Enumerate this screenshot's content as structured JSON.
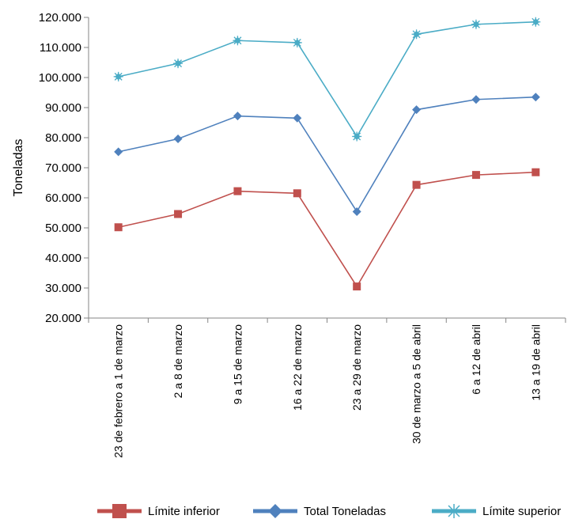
{
  "chart_data": {
    "type": "line",
    "ylabel": "Toneladas",
    "ylim": [
      20000,
      120000
    ],
    "y_ticks": [
      {
        "value": 20000,
        "label": "20.000"
      },
      {
        "value": 30000,
        "label": "30.000"
      },
      {
        "value": 40000,
        "label": "40.000"
      },
      {
        "value": 50000,
        "label": "50.000"
      },
      {
        "value": 60000,
        "label": "60.000"
      },
      {
        "value": 70000,
        "label": "70.000"
      },
      {
        "value": 80000,
        "label": "80.000"
      },
      {
        "value": 90000,
        "label": "90.000"
      },
      {
        "value": 100000,
        "label": "100.000"
      },
      {
        "value": 110000,
        "label": "110.000"
      },
      {
        "value": 120000,
        "label": "120.000"
      }
    ],
    "categories": [
      "23 de febrero a 1 de marzo",
      "2 a 8 de marzo",
      "9 a 15 de marzo",
      "16 a 22 de marzo",
      "23 a 29 de marzo",
      "30 de marzo a 5 de  abril",
      "6 a 12 de  abril",
      "13 a 19 de  abril"
    ],
    "series": [
      {
        "name": "Límite inferior",
        "color": "#c0504d",
        "marker": "square",
        "values": [
          50200,
          54600,
          62200,
          61500,
          30500,
          64300,
          67600,
          68500
        ]
      },
      {
        "name": "Total Toneladas",
        "color": "#4f81bd",
        "marker": "diamond",
        "values": [
          75300,
          79600,
          87200,
          86500,
          55400,
          89300,
          92700,
          93500
        ]
      },
      {
        "name": "Límite superior",
        "color": "#4bacc6",
        "marker": "star",
        "values": [
          100300,
          104700,
          112300,
          111600,
          80400,
          114400,
          117700,
          118500
        ]
      }
    ],
    "grid": false,
    "legend": "bottom"
  }
}
